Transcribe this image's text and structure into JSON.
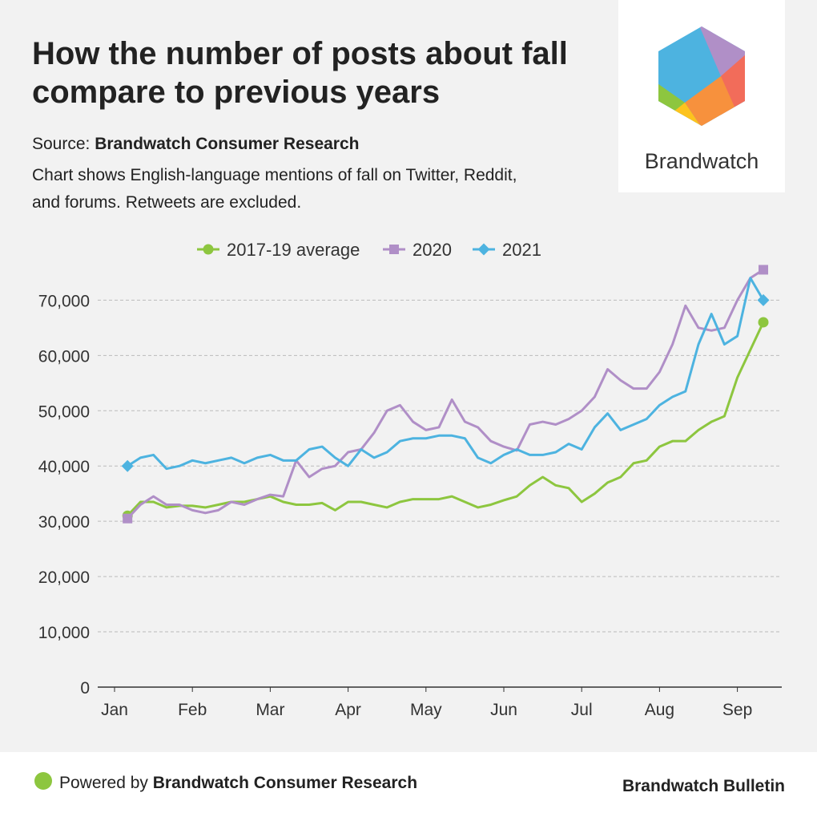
{
  "header": {
    "title_lines": [
      "How the number of posts about fall",
      "compare to previous years"
    ],
    "source_label": "Source:",
    "source_name": "Brandwatch Consumer Research",
    "description_lines": [
      "Chart shows English-language mentions of fall on Twitter, Reddit,",
      "and forums. Retweets are excluded."
    ],
    "logo_text": "Brandwatch"
  },
  "chart_data": {
    "type": "line",
    "categories": [
      "Jan",
      null,
      null,
      null,
      null,
      null,
      "Feb",
      null,
      null,
      null,
      null,
      null,
      "Mar",
      null,
      null,
      null,
      null,
      null,
      "Apr",
      null,
      null,
      null,
      null,
      null,
      "May",
      null,
      null,
      null,
      null,
      null,
      "Jun",
      null,
      null,
      null,
      null,
      null,
      "Jul",
      null,
      null,
      null,
      null,
      null,
      "Aug",
      null,
      null,
      null,
      null,
      null,
      "Sep",
      null,
      null
    ],
    "series": [
      {
        "name": "2017-19 average",
        "color": "#8dc63f",
        "marker": "circle",
        "values": [
          null,
          31000,
          33500,
          33500,
          32500,
          32800,
          32800,
          32500,
          33000,
          33500,
          33500,
          34000,
          34500,
          33500,
          33000,
          33000,
          33300,
          32000,
          33500,
          33500,
          33000,
          32500,
          33500,
          34000,
          34000,
          34000,
          34500,
          33500,
          32500,
          33000,
          33800,
          34500,
          36500,
          38000,
          36500,
          36000,
          33500,
          35000,
          37000,
          38000,
          40500,
          41000,
          43500,
          44500,
          44500,
          46500,
          48000,
          49000,
          56000,
          61000,
          66000
        ]
      },
      {
        "name": "2020",
        "color": "#b08fc7",
        "marker": "square",
        "values": [
          null,
          30500,
          33000,
          34500,
          33000,
          33000,
          32000,
          31500,
          32000,
          33500,
          33000,
          34000,
          34800,
          34500,
          41000,
          38000,
          39500,
          40000,
          42500,
          43000,
          46000,
          50000,
          51000,
          48000,
          46500,
          47000,
          52000,
          48000,
          47000,
          44500,
          43500,
          42800,
          47500,
          48000,
          47500,
          48500,
          50000,
          52500,
          57500,
          55500,
          54000,
          54000,
          57000,
          62000,
          69000,
          65000,
          64500,
          65000,
          70000,
          74000,
          75500
        ]
      },
      {
        "name": "2021",
        "color": "#4db3e0",
        "marker": "diamond",
        "values": [
          null,
          40000,
          41500,
          42000,
          39500,
          40000,
          41000,
          40500,
          41000,
          41500,
          40500,
          41500,
          42000,
          41000,
          41000,
          43000,
          43500,
          41500,
          40000,
          43000,
          41500,
          42500,
          44500,
          45000,
          45000,
          45500,
          45500,
          45000,
          41500,
          40500,
          42000,
          43000,
          42000,
          42000,
          42500,
          44000,
          43000,
          47000,
          49500,
          46500,
          47500,
          48500,
          51000,
          52500,
          53500,
          62000,
          67500,
          62000,
          63500,
          74000,
          70000
        ]
      }
    ],
    "ylim": [
      0,
      76000
    ],
    "yticks": [
      0,
      {
        "value": 10000,
        "label": "10,000"
      },
      {
        "value": 20000,
        "label": "20,000"
      },
      {
        "value": 30000,
        "label": "30,000"
      },
      {
        "value": 40000,
        "label": "40,000"
      },
      {
        "value": 50000,
        "label": "50,000"
      },
      {
        "value": 60000,
        "label": "60,000"
      },
      {
        "value": 70000,
        "label": "70,000"
      }
    ],
    "grid": true
  },
  "footer": {
    "powered_prefix": "Powered by",
    "powered_name": "Brandwatch Consumer Research",
    "brand": "Brandwatch Bulletin"
  }
}
